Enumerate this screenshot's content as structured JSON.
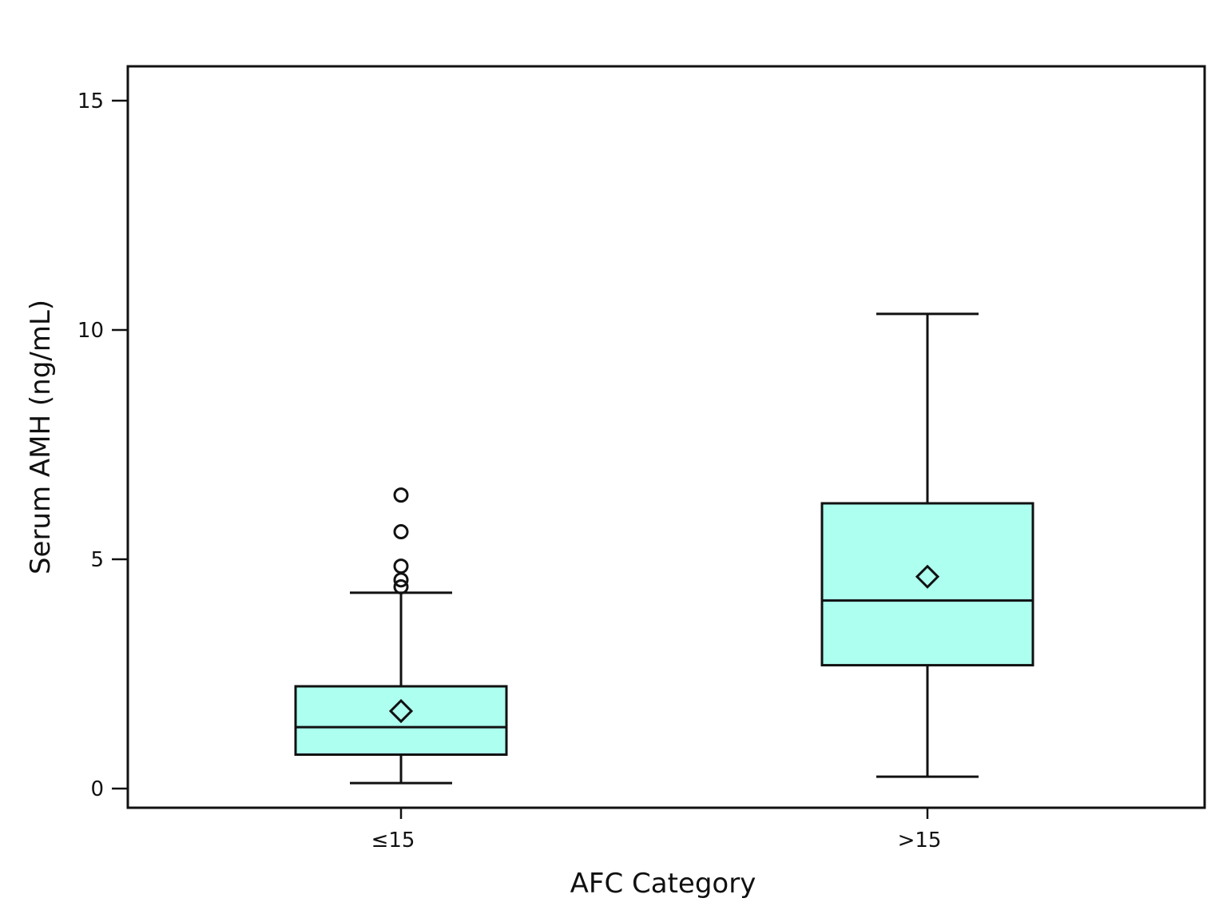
{
  "chart_data": {
    "type": "box",
    "xlabel": "AFC Category",
    "ylabel": "Serum AMH (ng/mL)",
    "ylim": [
      -0.4,
      15.75
    ],
    "yticks": [
      0,
      5,
      10,
      15
    ],
    "categories": [
      "≤15",
      ">15"
    ],
    "boxes": [
      {
        "category": "≤15",
        "whisker_low": 0.12,
        "q1": 0.74,
        "median": 1.34,
        "q3": 2.23,
        "whisker_high": 4.27,
        "mean": 1.69,
        "outliers": [
          4.4,
          4.55,
          4.85,
          5.6,
          6.4
        ]
      },
      {
        "category": ">15",
        "whisker_low": 0.26,
        "q1": 2.69,
        "median": 4.1,
        "q3": 6.22,
        "whisker_high": 10.35,
        "mean": 4.62,
        "outliers": []
      }
    ],
    "box_fill": "#adfff0",
    "line_color": "#111111",
    "grid": false,
    "legend": "none"
  }
}
